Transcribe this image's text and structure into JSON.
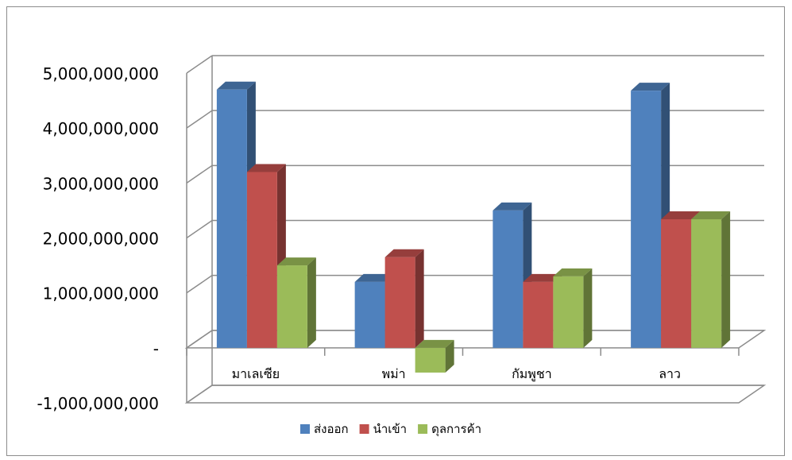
{
  "chart_data": {
    "type": "bar",
    "categories": [
      "มาเลเซีย",
      "พม่า",
      "กัมพูชา",
      "ลาว"
    ],
    "series": [
      {
        "name": "ส่งออก",
        "values": [
          4700000000,
          1200000000,
          2500000000,
          4680000000
        ],
        "color": "#4f81bd"
      },
      {
        "name": "นำเข้า",
        "values": [
          3200000000,
          1650000000,
          1200000000,
          2340000000
        ],
        "color": "#c0504d"
      },
      {
        "name": "ดุลการค้า",
        "values": [
          1500000000,
          -450000000,
          1300000000,
          2340000000
        ],
        "color": "#9bbb59"
      }
    ],
    "ylim": [
      -1000000000,
      5000000000
    ],
    "ytick_labels": [
      "-1,000,000,000",
      "-",
      "1,000,000,000",
      "2,000,000,000",
      "3,000,000,000",
      "4,000,000,000",
      "5,000,000,000"
    ],
    "ytick_values": [
      -1000000000,
      0,
      1000000000,
      2000000000,
      3000000000,
      4000000000,
      5000000000
    ],
    "legend_position": "bottom",
    "grid": true,
    "style": "3d-clustered-column"
  }
}
